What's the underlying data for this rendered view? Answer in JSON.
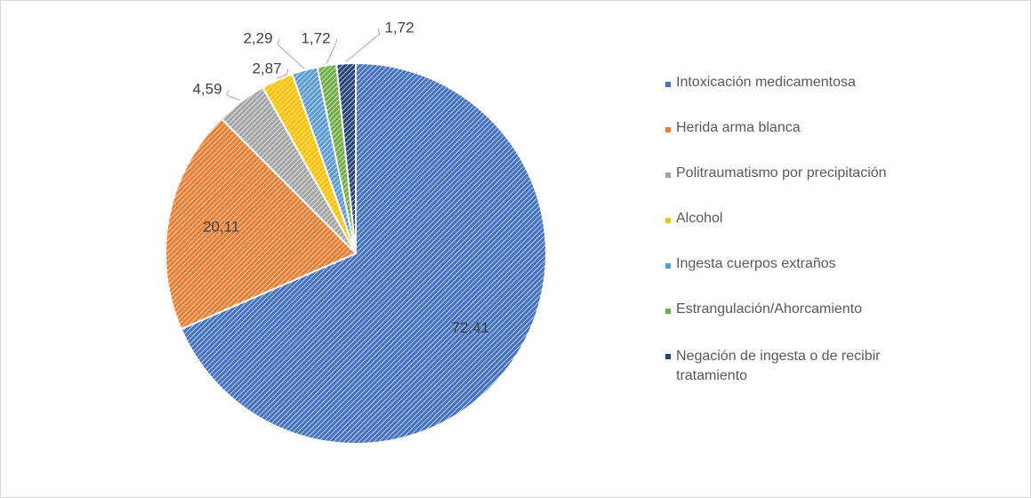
{
  "chart_data": {
    "type": "pie",
    "categories": [
      "Intoxicación medicamentosa",
      "Herida arma blanca",
      "Politraumatismo por precipitación",
      "Alcohol",
      "Ingesta cuerpos extraños",
      "Estrangulación/Ahorcamiento",
      "Negación de ingesta o de recibir tratamiento"
    ],
    "values": [
      72.41,
      20.11,
      4.59,
      2.87,
      2.29,
      1.72,
      1.72
    ],
    "value_labels": [
      "72,41",
      "20,11",
      "4,59",
      "2,87",
      "2,29",
      "1,72",
      "1,72"
    ],
    "colors": [
      "#4472c4",
      "#ed7d31",
      "#a5a5a5",
      "#ffc000",
      "#5b9bd5",
      "#70ad47",
      "#264478"
    ],
    "legend": "right"
  }
}
